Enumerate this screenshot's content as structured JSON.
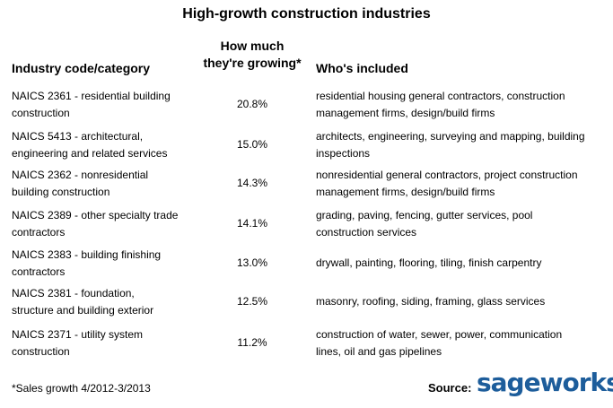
{
  "title": "High-growth construction industries",
  "headers": {
    "code": "Industry code/category",
    "growth_line1": "How much",
    "growth_line2": "they're growing*",
    "who": "Who's included"
  },
  "rows": [
    {
      "code": [
        "NAICS 2361 - residential building",
        "construction"
      ],
      "growth": "20.8%",
      "who": [
        "residential housing general contractors, construction",
        "management firms, design/build firms"
      ]
    },
    {
      "code": [
        "NAICS 5413 - architectural,",
        "engineering and related services"
      ],
      "growth": "15.0%",
      "who": [
        "architects, engineering, surveying and mapping, building",
        "inspections"
      ]
    },
    {
      "code": [
        "NAICS 2362 - nonresidential",
        "building construction"
      ],
      "growth": "14.3%",
      "who": [
        "nonresidential  general contractors, project construction",
        "management firms, design/build firms"
      ]
    },
    {
      "code": [
        "NAICS 2389 - other specialty trade",
        "contractors"
      ],
      "growth": "14.1%",
      "who": [
        "grading, paving, fencing, gutter services, pool",
        "construction services"
      ]
    },
    {
      "code": [
        "NAICS  2383 - building finishing",
        "contractors"
      ],
      "growth": "13.0%",
      "who": [
        "drywall, painting, flooring, tiling, finish carpentry"
      ]
    },
    {
      "code": [
        "NAICS  2381 - foundation,",
        "structure and building exterior"
      ],
      "growth": "12.5%",
      "who": [
        "masonry, roofing, siding, framing, glass services"
      ]
    },
    {
      "code": [
        "NAICS 2371 - utility system",
        "construction"
      ],
      "growth": "11.2%",
      "who": [
        "construction of water, sewer, power, communication",
        "lines, oil and gas pipelines"
      ]
    }
  ],
  "footnote": "*Sales growth 4/2012-3/2013",
  "source_label": "Source:",
  "logo_text": "sageworks",
  "logo_tm": "™",
  "colors": {
    "logo": "#1d5d9b"
  }
}
